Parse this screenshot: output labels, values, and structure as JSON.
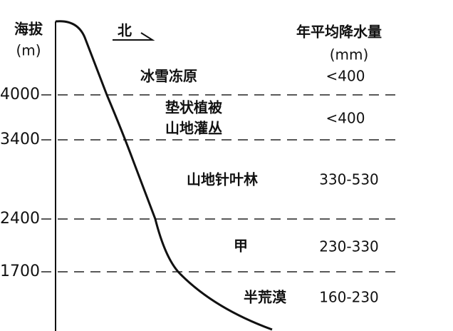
{
  "axis": {
    "title": "海拔",
    "unit": "(m)",
    "ticks": [
      "4000",
      "3400",
      "2400",
      "1700"
    ]
  },
  "direction": "北",
  "precip_header": {
    "title": "年平均降水量",
    "unit": "(mm)"
  },
  "zones": [
    {
      "name": [
        "冰雪冻原"
      ],
      "precipitation": "<400"
    },
    {
      "name": [
        "垫状植被",
        "山地灌丛"
      ],
      "precipitation": "<400"
    },
    {
      "name": [
        "山地针叶林"
      ],
      "precipitation": "330-530"
    },
    {
      "name": [
        "甲"
      ],
      "precipitation": "230-330"
    },
    {
      "name": [
        "半荒漠"
      ],
      "precipitation": "160-230"
    }
  ]
}
